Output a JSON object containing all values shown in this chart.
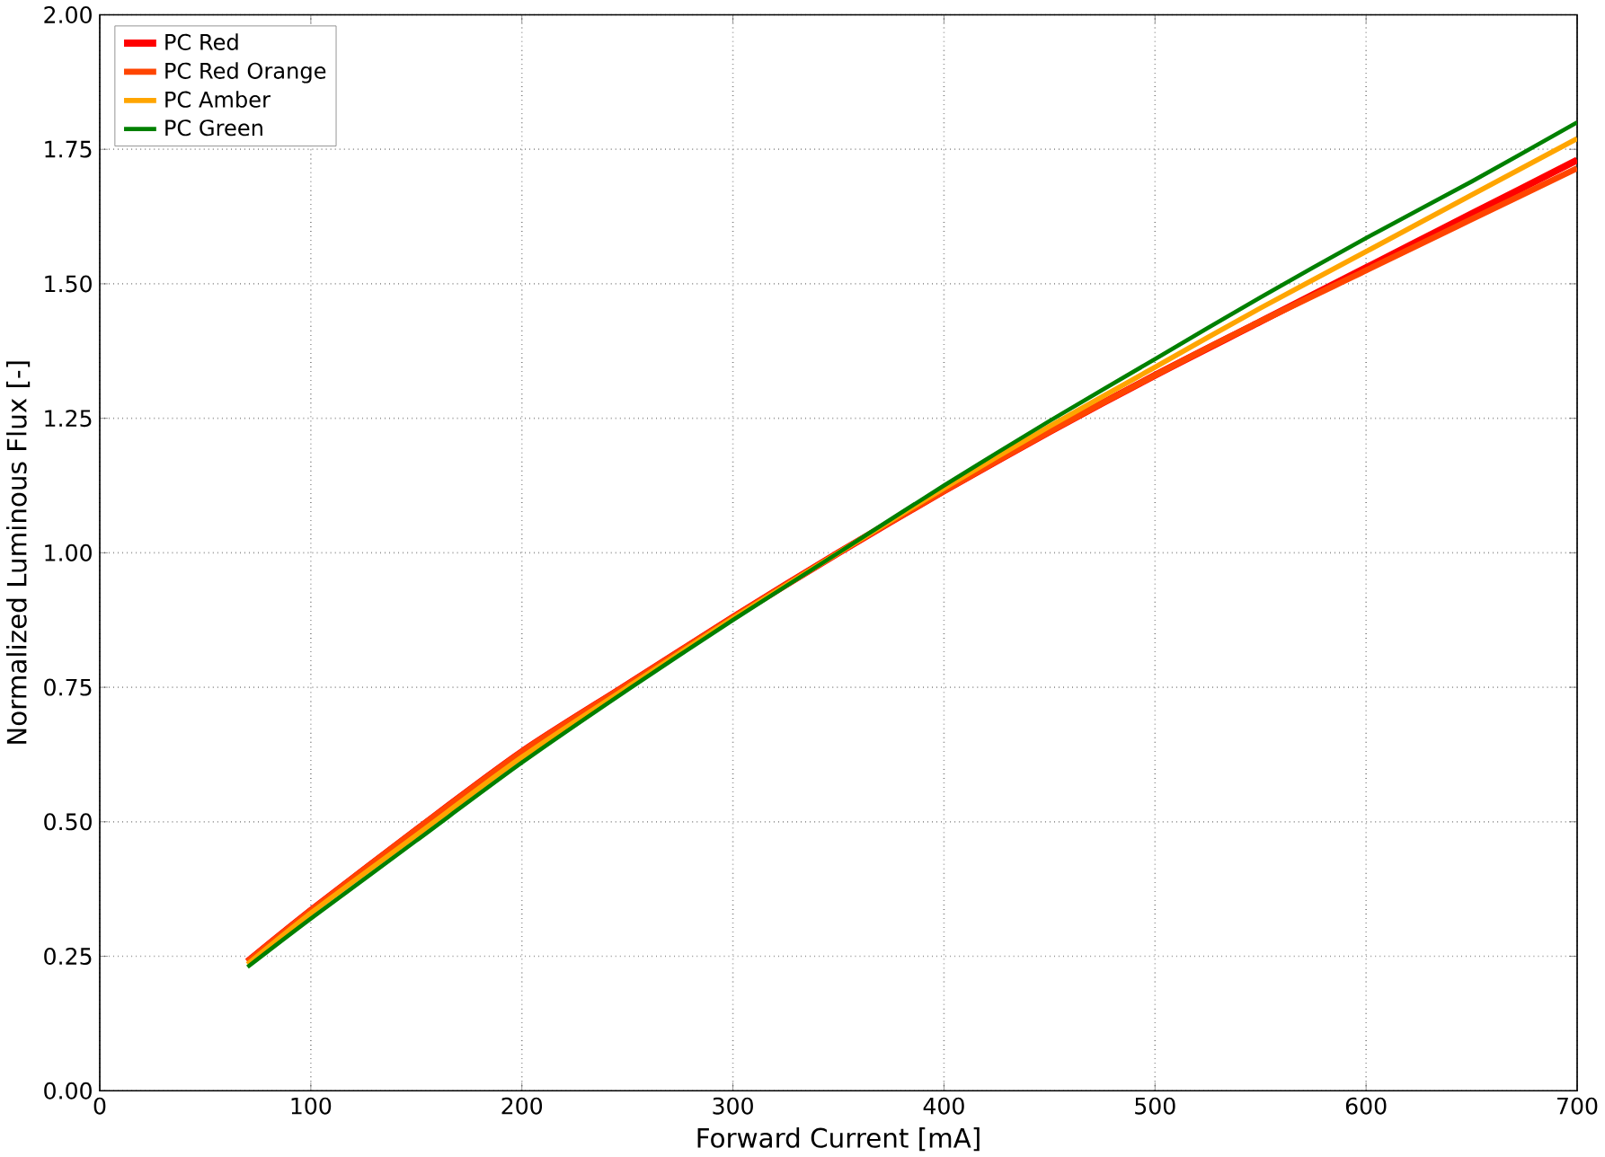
{
  "chart_data": {
    "type": "line",
    "xlabel": "Forward Current [mA]",
    "ylabel": "Normalized Luminous Flux [-]",
    "x": [
      70,
      100,
      150,
      200,
      250,
      300,
      350,
      400,
      450,
      500,
      550,
      600,
      650,
      700
    ],
    "series": [
      {
        "name": "PC Red",
        "color": "#ff0000",
        "values": [
          0.24,
          0.335,
          0.485,
          0.63,
          0.755,
          0.88,
          1.0,
          1.115,
          1.225,
          1.33,
          1.43,
          1.53,
          1.63,
          1.73
        ]
      },
      {
        "name": "PC Red Orange",
        "color": "#ff4500",
        "values": [
          0.24,
          0.335,
          0.485,
          0.63,
          0.755,
          0.88,
          1.0,
          1.115,
          1.225,
          1.33,
          1.43,
          1.525,
          1.62,
          1.715
        ]
      },
      {
        "name": "PC Amber",
        "color": "#ffa500",
        "values": [
          0.235,
          0.33,
          0.475,
          0.62,
          0.75,
          0.878,
          1.0,
          1.12,
          1.235,
          1.345,
          1.455,
          1.56,
          1.665,
          1.77
        ]
      },
      {
        "name": "PC Green",
        "color": "#008000",
        "values": [
          0.23,
          0.32,
          0.465,
          0.61,
          0.745,
          0.875,
          1.0,
          1.125,
          1.245,
          1.36,
          1.475,
          1.585,
          1.69,
          1.8
        ]
      }
    ],
    "xlim": [
      0,
      700
    ],
    "ylim": [
      0,
      2
    ],
    "xticks": [
      0,
      100,
      200,
      300,
      400,
      500,
      600,
      700
    ],
    "yticks": [
      {
        "value": 0,
        "label": "0.00"
      },
      {
        "value": 0.25,
        "label": "0.25"
      },
      {
        "value": 0.5,
        "label": "0.50"
      },
      {
        "value": 0.75,
        "label": "0.75"
      },
      {
        "value": 1,
        "label": "1.00"
      },
      {
        "value": 1.25,
        "label": "1.25"
      },
      {
        "value": 1.5,
        "label": "1.50"
      },
      {
        "value": 1.75,
        "label": "1.75"
      },
      {
        "value": 2,
        "label": "2.00"
      }
    ],
    "grid": true,
    "legend": "top left",
    "marker": "none",
    "line_style": "solid"
  }
}
